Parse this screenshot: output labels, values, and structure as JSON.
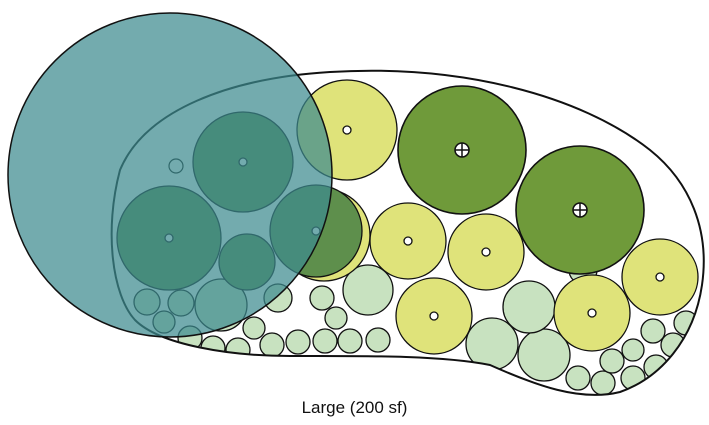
{
  "caption": "Large (200 sf)",
  "colors": {
    "canopy_tree": "#3d8a8f",
    "large_shrub": "#5e8f4c",
    "accent_shrub": "#6f9a3a",
    "flowering_shrub": "#dfe37a",
    "groundcover": "#c8e2c0",
    "outline": "#111111",
    "bed_fill": "#ffffff"
  },
  "plant_types": [
    "canopy-tree",
    "large-shrub",
    "accent-shrub",
    "flowering-shrub",
    "groundcover"
  ]
}
